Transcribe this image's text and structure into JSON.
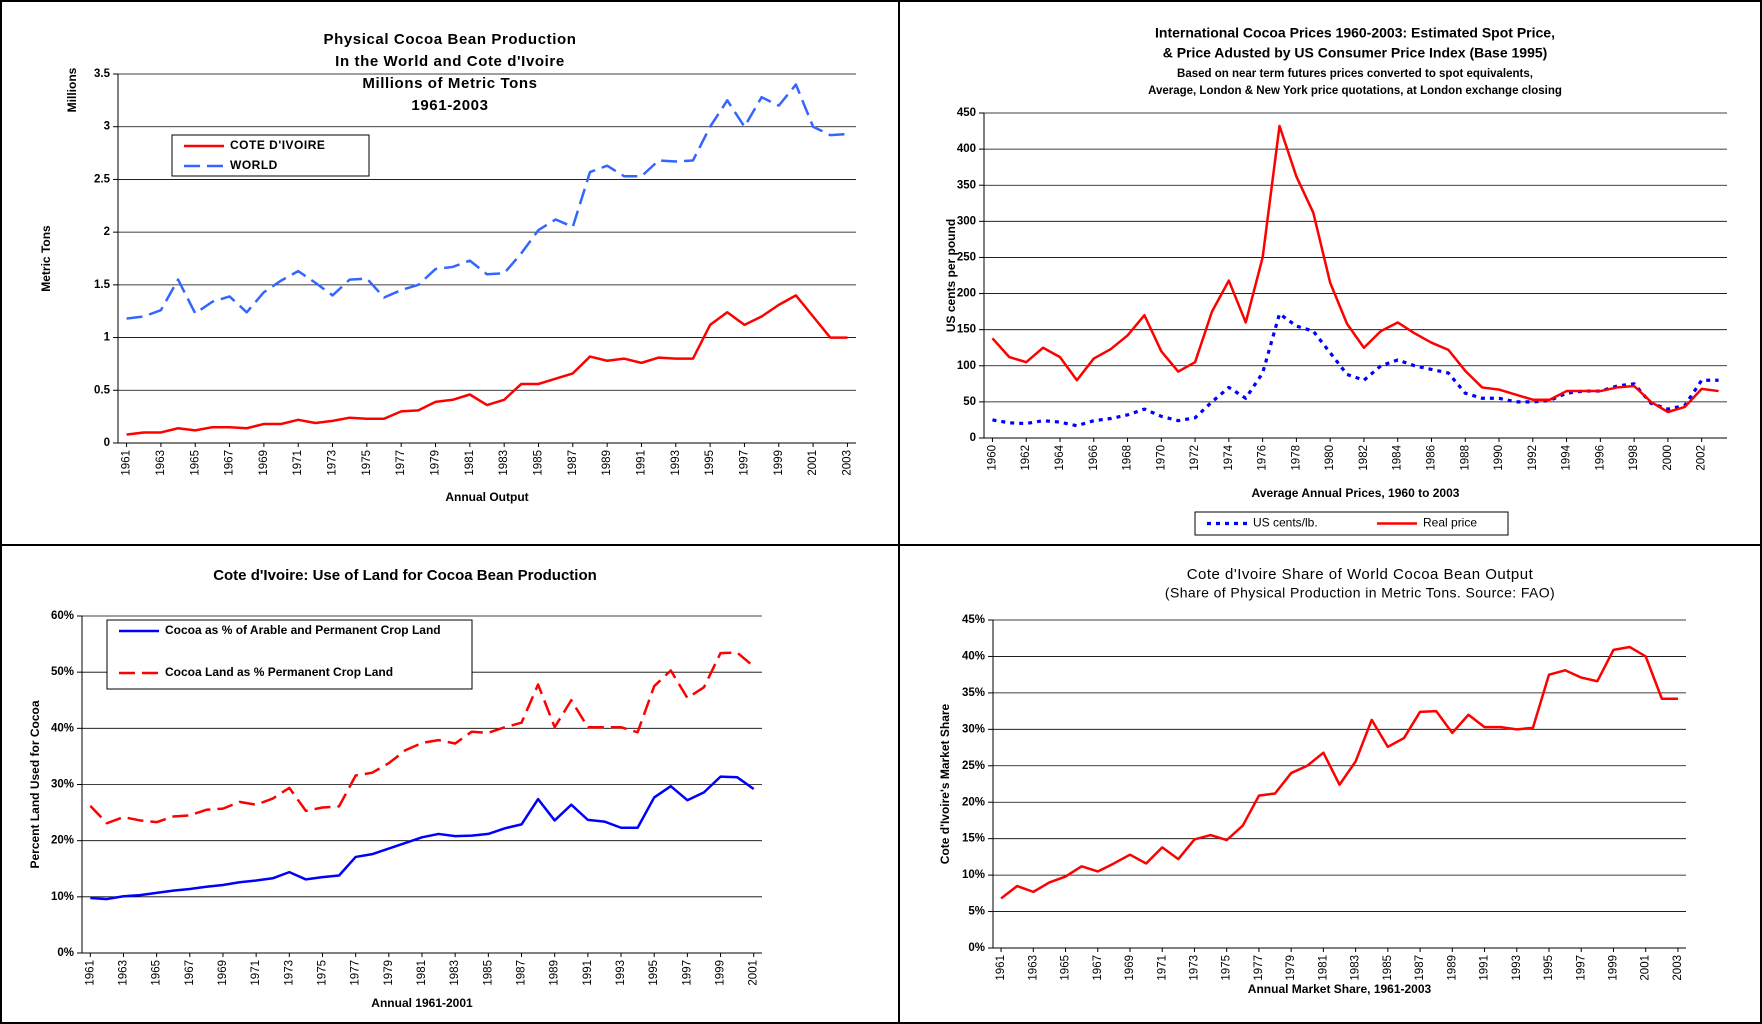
{
  "chart_data": [
    {
      "type": "line",
      "title": [
        "Physical Cocoa Bean Production",
        "In the World and Cote d'Ivoire",
        "Millions of Metric Tons",
        "1961-2003"
      ],
      "y_unit_label": "Millions",
      "ylabel": "Metric Tons",
      "xlabel": "Annual Output",
      "categories": [
        "1961",
        null,
        "1963",
        null,
        "1965",
        null,
        "1967",
        null,
        "1969",
        null,
        "1971",
        null,
        "1973",
        null,
        "1975",
        null,
        "1977",
        null,
        "1979",
        null,
        "1981",
        null,
        "1983",
        null,
        "1985",
        null,
        "1987",
        null,
        "1989",
        null,
        "1991",
        null,
        "1993",
        null,
        "1995",
        null,
        "1997",
        null,
        "1999",
        null,
        "2001",
        null,
        "2003"
      ],
      "series": [
        {
          "name": "COTE D'IVOIRE",
          "color": "#ff0000",
          "line_style": "solid",
          "values": [
            0.08,
            0.1,
            0.1,
            0.14,
            0.12,
            0.15,
            0.15,
            0.14,
            0.18,
            0.18,
            0.22,
            0.19,
            0.21,
            0.24,
            0.23,
            0.23,
            0.3,
            0.31,
            0.39,
            0.41,
            0.46,
            0.36,
            0.41,
            0.56,
            0.56,
            0.61,
            0.66,
            0.82,
            0.78,
            0.8,
            0.76,
            0.81,
            0.8,
            0.8,
            1.12,
            1.24,
            1.12,
            1.2,
            1.31,
            1.4,
            1.2,
            1.0,
            1.0
          ]
        },
        {
          "name": "WORLD",
          "color": "#3366ff",
          "line_style": "dashed",
          "values": [
            1.18,
            1.2,
            1.26,
            1.55,
            1.23,
            1.34,
            1.39,
            1.24,
            1.43,
            1.54,
            1.63,
            1.52,
            1.4,
            1.55,
            1.56,
            1.38,
            1.45,
            1.5,
            1.65,
            1.67,
            1.73,
            1.6,
            1.61,
            1.8,
            2.02,
            2.12,
            2.05,
            2.57,
            2.63,
            2.53,
            2.53,
            2.68,
            2.67,
            2.68,
            3.0,
            3.25,
            3.0,
            3.28,
            3.2,
            3.4,
            3.0,
            2.92,
            2.93
          ]
        }
      ],
      "ylim": [
        0,
        3.5
      ],
      "yticks": [
        0,
        0.5,
        1,
        1.5,
        2,
        2.5,
        3,
        3.5
      ],
      "grid": true,
      "legend": "upper left"
    },
    {
      "type": "line",
      "title": [
        "International Cocoa Prices 1960-2003: Estimated Spot Price,",
        "& Price Adusted by US Consumer Price Index (Base 1995)"
      ],
      "subtitle": [
        "Based on near term futures prices converted to spot equivalents,",
        "Average, London & New York price quotations, at London exchange closing"
      ],
      "ylabel": "US cents per pound",
      "xlabel": "Average Annual Prices, 1960 to 2003",
      "categories": [
        "1960",
        null,
        "1962",
        null,
        "1964",
        null,
        "1966",
        null,
        "1968",
        null,
        "1970",
        null,
        "1972",
        null,
        "1974",
        null,
        "1976",
        null,
        "1978",
        null,
        "1980",
        null,
        "1982",
        null,
        "1984",
        null,
        "1986",
        null,
        "1988",
        null,
        "1990",
        null,
        "1992",
        null,
        "1994",
        null,
        "1996",
        null,
        "1998",
        null,
        "2000",
        null,
        "2002",
        null
      ],
      "series": [
        {
          "name": "US cents/lb.",
          "color": "#0000ff",
          "line_style": "dotted",
          "values": [
            25,
            21,
            20,
            24,
            22,
            17,
            24,
            27,
            32,
            40,
            30,
            24,
            28,
            50,
            70,
            55,
            90,
            172,
            155,
            148,
            118,
            88,
            80,
            100,
            108,
            100,
            95,
            90,
            62,
            55,
            55,
            50,
            50,
            52,
            62,
            65,
            65,
            72,
            75,
            48,
            40,
            45,
            80,
            80
          ]
        },
        {
          "name": "Real price",
          "color": "#ff0000",
          "line_style": "solid",
          "values": [
            138,
            112,
            105,
            125,
            112,
            80,
            110,
            123,
            142,
            170,
            120,
            92,
            105,
            175,
            218,
            160,
            250,
            432,
            362,
            312,
            215,
            158,
            125,
            148,
            160,
            145,
            132,
            122,
            93,
            70,
            67,
            60,
            53,
            53,
            65,
            65,
            65,
            70,
            72,
            50,
            36,
            43,
            68,
            65
          ]
        }
      ],
      "ylim": [
        0,
        450
      ],
      "yticks": [
        0,
        50,
        100,
        150,
        200,
        250,
        300,
        350,
        400,
        450
      ],
      "grid": true,
      "legend": "bottom"
    },
    {
      "type": "line",
      "title": [
        "Cote d'Ivoire: Use of Land for Cocoa Bean Production"
      ],
      "ylabel": "Percent Land Used for Cocoa",
      "xlabel": "Annual 1961-2001",
      "categories": [
        "1961",
        null,
        "1963",
        null,
        "1965",
        null,
        "1967",
        null,
        "1969",
        null,
        "1971",
        null,
        "1973",
        null,
        "1975",
        null,
        "1977",
        null,
        "1979",
        null,
        "1981",
        null,
        "1983",
        null,
        "1985",
        null,
        "1987",
        null,
        "1989",
        null,
        "1991",
        null,
        "1993",
        null,
        "1995",
        null,
        "1997",
        null,
        "1999",
        null,
        "2001"
      ],
      "series": [
        {
          "name": "Cocoa as % of Arable and Permanent Crop Land",
          "color": "#0000ff",
          "line_style": "solid",
          "values": [
            9.8,
            9.6,
            10.1,
            10.3,
            10.7,
            11.1,
            11.4,
            11.8,
            12.1,
            12.6,
            12.9,
            13.3,
            14.4,
            13.1,
            13.5,
            13.8,
            17.1,
            17.6,
            18.6,
            19.6,
            20.6,
            21.2,
            20.8,
            20.9,
            21.2,
            22.2,
            22.9,
            27.4,
            23.6,
            26.4,
            23.7,
            23.4,
            22.3,
            22.3,
            27.7,
            29.7,
            27.2,
            28.6,
            31.4,
            31.3,
            29.2
          ]
        },
        {
          "name": "Cocoa Land as % Permanent Crop Land",
          "color": "#ff0000",
          "line_style": "dashed",
          "values": [
            26.2,
            23.1,
            24.2,
            23.6,
            23.3,
            24.3,
            24.5,
            25.5,
            25.7,
            26.9,
            26.4,
            27.5,
            29.4,
            25.3,
            25.9,
            26.1,
            31.6,
            32.1,
            33.8,
            36.1,
            37.4,
            37.9,
            37.3,
            39.4,
            39.2,
            40.2,
            41.0,
            47.8,
            40.2,
            45.0,
            40.2,
            40.2,
            40.2,
            39.3,
            47.5,
            50.3,
            45.4,
            47.3,
            53.4,
            53.5,
            51.0
          ]
        }
      ],
      "ylim": [
        0,
        60
      ],
      "yticks": [
        {
          "value": 0,
          "label": "0%"
        },
        {
          "value": 10,
          "label": "10%"
        },
        {
          "value": 20,
          "label": "20%"
        },
        {
          "value": 30,
          "label": "30%"
        },
        {
          "value": 40,
          "label": "40%"
        },
        {
          "value": 50,
          "label": "50%"
        },
        {
          "value": 60,
          "label": "60%"
        }
      ],
      "grid": true,
      "legend": "upper left"
    },
    {
      "type": "line",
      "title": [
        "Cote d'Ivoire Share of World Cocoa Bean Output"
      ],
      "subtitle": [
        "(Share of Physical Production in Metric Tons.  Source: FAO)"
      ],
      "ylabel": "Cote d'Ivoire's Market Share",
      "xlabel": "Annual Market Share, 1961-2003",
      "categories": [
        "1961",
        null,
        "1963",
        null,
        "1965",
        null,
        "1967",
        null,
        "1969",
        null,
        "1971",
        null,
        "1973",
        null,
        "1975",
        null,
        "1977",
        null,
        "1979",
        null,
        "1981",
        null,
        "1983",
        null,
        "1985",
        null,
        "1987",
        null,
        "1989",
        null,
        "1991",
        null,
        "1993",
        null,
        "1995",
        null,
        "1997",
        null,
        "1999",
        null,
        "2001",
        null,
        "2003"
      ],
      "values": [
        6.8,
        8.5,
        7.7,
        9.0,
        9.8,
        11.2,
        10.5,
        11.6,
        12.8,
        11.6,
        13.8,
        12.2,
        14.9,
        15.5,
        14.8,
        16.8,
        20.9,
        21.2,
        24.0,
        25.0,
        26.8,
        22.4,
        25.6,
        31.3,
        27.6,
        28.8,
        32.4,
        32.5,
        29.5,
        32.0,
        30.3,
        30.3,
        30.0,
        30.2,
        37.5,
        38.1,
        37.1,
        36.6,
        40.9,
        41.3,
        40.0,
        34.2,
        34.2
      ],
      "color": "#ff0000",
      "ylim": [
        0,
        45
      ],
      "yticks": [
        {
          "value": 0,
          "label": "0%"
        },
        {
          "value": 5,
          "label": "5%"
        },
        {
          "value": 10,
          "label": "10%"
        },
        {
          "value": 15,
          "label": "15%"
        },
        {
          "value": 20,
          "label": "20%"
        },
        {
          "value": 25,
          "label": "25%"
        },
        {
          "value": 30,
          "label": "30%"
        },
        {
          "value": 35,
          "label": "35%"
        },
        {
          "value": 40,
          "label": "40%"
        },
        {
          "value": 45,
          "label": "45%"
        }
      ],
      "grid": true
    }
  ]
}
